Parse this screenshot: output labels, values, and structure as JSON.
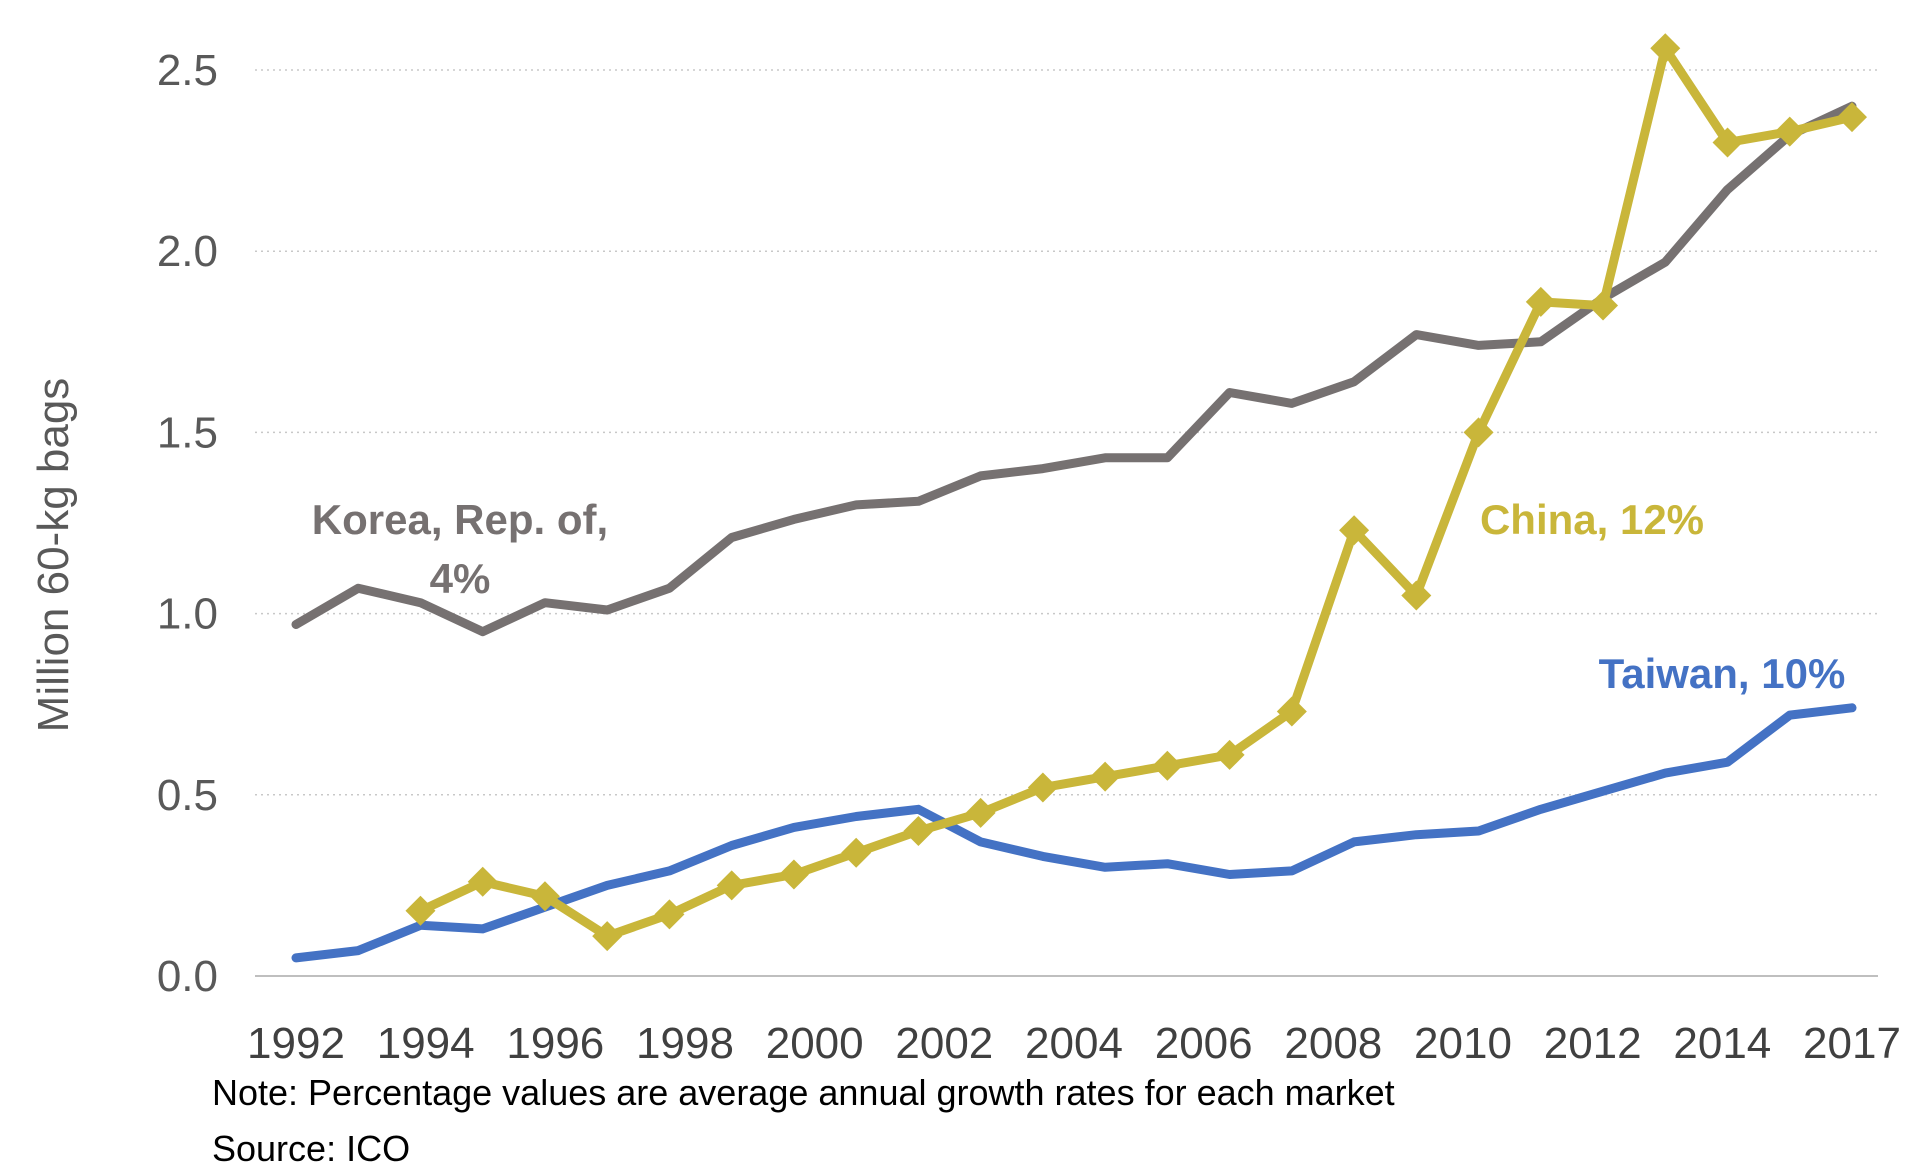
{
  "chart_data": {
    "type": "line",
    "title": "",
    "ylabel": "Million 60-kg bags",
    "xlabel": "",
    "ylim": [
      0,
      2.5
    ],
    "yticks": [
      "0.0",
      "0.5",
      "1.0",
      "1.5",
      "2.0",
      "2.5"
    ],
    "x": [
      1992,
      1993,
      1994,
      1995,
      1996,
      1997,
      1998,
      1999,
      2000,
      2001,
      2002,
      2003,
      2004,
      2005,
      2006,
      2007,
      2008,
      2009,
      2010,
      2011,
      2012,
      2013,
      2014,
      2015,
      2016,
      2017
    ],
    "xtick_labels": [
      "1992",
      "1994",
      "1996",
      "1998",
      "2000",
      "2002",
      "2004",
      "2006",
      "2008",
      "2010",
      "2012",
      "2014",
      "2017"
    ],
    "grid": "horizontal dotted",
    "series": [
      {
        "name": "Korea, Rep. of, 4%",
        "color": "#767171",
        "marker": "none",
        "values": [
          0.97,
          1.07,
          1.03,
          0.95,
          1.03,
          1.01,
          1.07,
          1.21,
          1.26,
          1.3,
          1.31,
          1.38,
          1.4,
          1.43,
          1.43,
          1.61,
          1.58,
          1.64,
          1.77,
          1.74,
          1.75,
          1.87,
          1.97,
          2.17,
          2.32,
          2.4
        ]
      },
      {
        "name": "China, 12%",
        "color": "#C9B63A",
        "marker": "diamond",
        "values": [
          null,
          null,
          0.18,
          0.26,
          0.22,
          0.11,
          0.17,
          0.25,
          0.28,
          0.34,
          0.4,
          0.45,
          0.52,
          0.55,
          0.58,
          0.61,
          0.73,
          1.23,
          1.05,
          1.5,
          1.86,
          1.85,
          2.56,
          2.3,
          2.33,
          2.37
        ]
      },
      {
        "name": "Taiwan, 10%",
        "color": "#4472C4",
        "marker": "none",
        "values": [
          0.05,
          0.07,
          0.14,
          0.13,
          0.19,
          0.25,
          0.29,
          0.36,
          0.41,
          0.44,
          0.46,
          0.37,
          0.33,
          0.3,
          0.31,
          0.28,
          0.29,
          0.37,
          0.39,
          0.4,
          0.46,
          0.51,
          0.56,
          0.59,
          0.72,
          0.74
        ]
      }
    ],
    "annotations": {
      "korea_line1": "Korea, Rep. of,",
      "korea_line2": "4%",
      "china": "China, 12%",
      "taiwan": "Taiwan, 10%"
    }
  },
  "footer": {
    "note": "Note: Percentage values are average annual growth rates for each market",
    "source": "Source: ICO"
  }
}
